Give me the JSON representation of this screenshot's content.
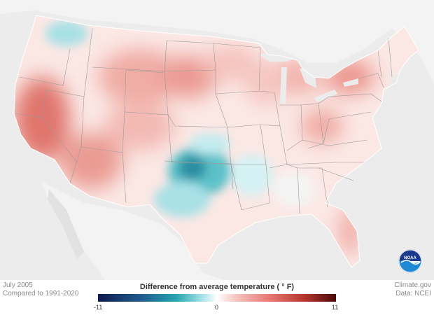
{
  "caption": {
    "month": "July 2005",
    "baseline": "Compared to 1991-2020"
  },
  "credits": {
    "site": "Climate.gov",
    "source": "Data: NCEI"
  },
  "logo": {
    "text": "NOAA"
  },
  "legend": {
    "title": "Difference from average temperature",
    "unit": "( ° F)",
    "min": "-11",
    "mid": "0",
    "max": "11",
    "colors": {
      "cold": "#0d1a4f",
      "cool": "#2aa5b2",
      "neutral": "#ffffff",
      "warm": "#e47a72",
      "hot": "#4a0a08"
    }
  }
}
